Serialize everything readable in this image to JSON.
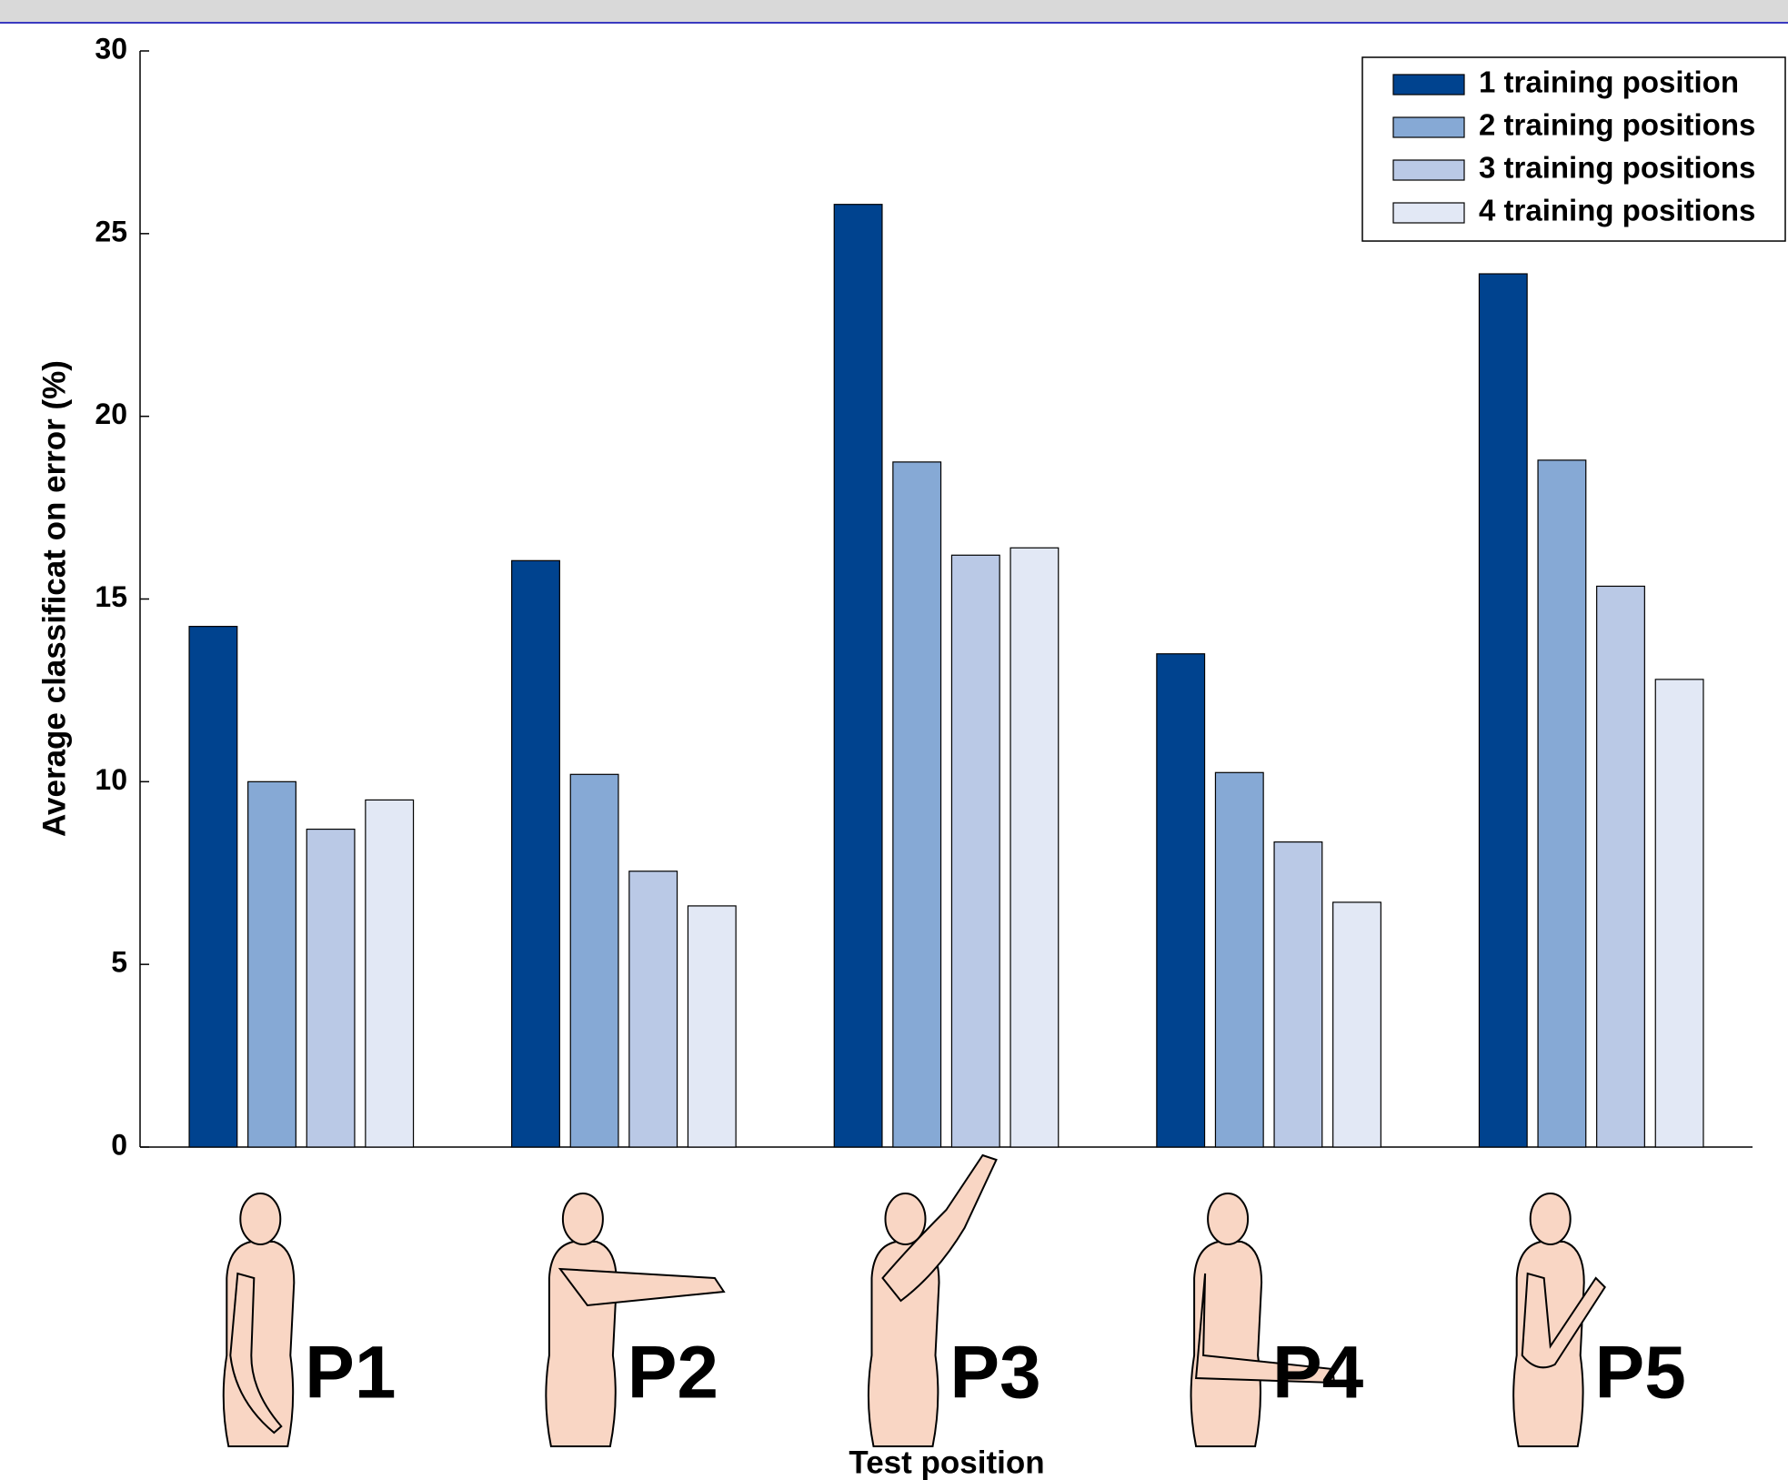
{
  "chart_data": {
    "type": "bar",
    "xlabel": "Test position",
    "ylabel": "Average classificat on error (%)",
    "categories": [
      "P1",
      "P2",
      "P3",
      "P4",
      "P5"
    ],
    "series": [
      {
        "name": "1 training position",
        "color": "#00438f",
        "values": [
          14.25,
          16.05,
          25.8,
          13.5,
          23.9
        ]
      },
      {
        "name": "2 training positions",
        "color": "#86a9d5",
        "values": [
          10.0,
          10.2,
          18.75,
          10.25,
          18.8
        ]
      },
      {
        "name": "3 training positions",
        "color": "#bac9e6",
        "values": [
          8.7,
          7.55,
          16.2,
          8.35,
          15.35
        ]
      },
      {
        "name": "4 training positions",
        "color": "#e2e8f5",
        "values": [
          9.5,
          6.6,
          16.4,
          6.7,
          12.8
        ]
      }
    ],
    "ylim": [
      0,
      30
    ],
    "yticks": [
      0,
      5,
      10,
      15,
      20,
      25,
      30
    ],
    "legend": "upper right"
  }
}
